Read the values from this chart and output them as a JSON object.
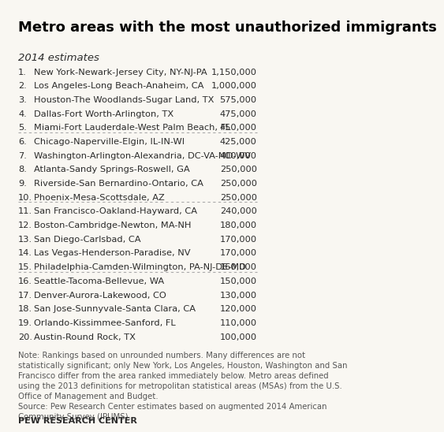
{
  "title": "Metro areas with the most unauthorized immigrants",
  "subtitle": "2014 estimates",
  "rows": [
    {
      "rank": 1,
      "city": "New York-Newark-Jersey City, NY-NJ-PA",
      "value": "1,150,000",
      "divider_after": false
    },
    {
      "rank": 2,
      "city": "Los Angeles-Long Beach-Anaheim, CA",
      "value": "1,000,000",
      "divider_after": false
    },
    {
      "rank": 3,
      "city": "Houston-The Woodlands-Sugar Land, TX",
      "value": "575,000",
      "divider_after": false
    },
    {
      "rank": 4,
      "city": "Dallas-Fort Worth-Arlington, TX",
      "value": "475,000",
      "divider_after": false
    },
    {
      "rank": 5,
      "city": "Miami-Fort Lauderdale-West Palm Beach, FL",
      "value": "450,000",
      "divider_after": true
    },
    {
      "rank": 6,
      "city": "Chicago-Naperville-Elgin, IL-IN-WI",
      "value": "425,000",
      "divider_after": false
    },
    {
      "rank": 7,
      "city": "Washington-Arlington-Alexandria, DC-VA-MD-WV",
      "value": "400,000",
      "divider_after": false
    },
    {
      "rank": 8,
      "city": "Atlanta-Sandy Springs-Roswell, GA",
      "value": "250,000",
      "divider_after": false
    },
    {
      "rank": 9,
      "city": "Riverside-San Bernardino-Ontario, CA",
      "value": "250,000",
      "divider_after": false
    },
    {
      "rank": 10,
      "city": "Phoenix-Mesa-Scottsdale, AZ",
      "value": "250,000",
      "divider_after": true
    },
    {
      "rank": 11,
      "city": "San Francisco-Oakland-Hayward, CA",
      "value": "240,000",
      "divider_after": false
    },
    {
      "rank": 12,
      "city": "Boston-Cambridge-Newton, MA-NH",
      "value": "180,000",
      "divider_after": false
    },
    {
      "rank": 13,
      "city": "San Diego-Carlsbad, CA",
      "value": "170,000",
      "divider_after": false
    },
    {
      "rank": 14,
      "city": "Las Vegas-Henderson-Paradise, NV",
      "value": "170,000",
      "divider_after": false
    },
    {
      "rank": 15,
      "city": "Philadelphia-Camden-Wilmington, PA-NJ-DE-MD",
      "value": "160,000",
      "divider_after": true
    },
    {
      "rank": 16,
      "city": "Seattle-Tacoma-Bellevue, WA",
      "value": "150,000",
      "divider_after": false
    },
    {
      "rank": 17,
      "city": "Denver-Aurora-Lakewood, CO",
      "value": "130,000",
      "divider_after": false
    },
    {
      "rank": 18,
      "city": "San Jose-Sunnyvale-Santa Clara, CA",
      "value": "120,000",
      "divider_after": false
    },
    {
      "rank": 19,
      "city": "Orlando-Kissimmee-Sanford, FL",
      "value": "110,000",
      "divider_after": false
    },
    {
      "rank": 20,
      "city": "Austin-Round Rock, TX",
      "value": "100,000",
      "divider_after": false
    }
  ],
  "note": "Note: Rankings based on unrounded numbers. Many differences are not\nstatistically significant; only New York, Los Angeles, Houston, Washington and San\nFrancisco differ from the area ranked immediately below. Metro areas defined\nusing the 2013 definitions for metropolitan statistical areas (MSAs) from the U.S.\nOffice of Management and Budget.",
  "source": "Source: Pew Research Center estimates based on augmented 2014 American\nCommunity Survey (IPUMS).",
  "footer": "PEW RESEARCH CENTER",
  "bg_color": "#f9f7f2",
  "title_color": "#000000",
  "text_color": "#2b2b2b",
  "note_color": "#555555",
  "divider_color": "#aaaaaa",
  "title_fontsize": 13.0,
  "subtitle_fontsize": 9.5,
  "row_fontsize": 8.2,
  "note_fontsize": 7.3,
  "footer_fontsize": 8.0
}
